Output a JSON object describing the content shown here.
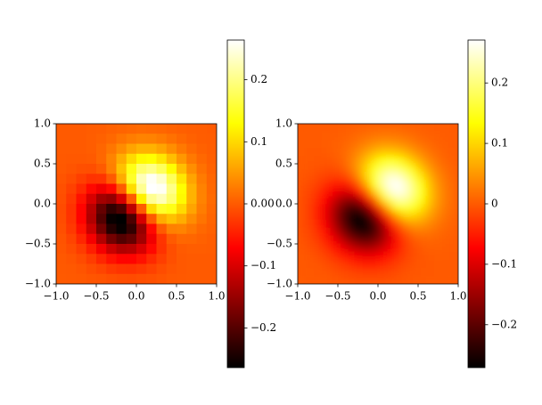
{
  "chart_data": [
    {
      "type": "heatmap",
      "colormap": "hot",
      "interpolation": "nearest",
      "clim": [
        -0.264,
        0.264
      ],
      "xlim": [
        -1,
        1
      ],
      "ylim": [
        -1,
        1
      ],
      "xticks": [
        {
          "value": -1,
          "label": "−1.0"
        },
        {
          "value": -0.5,
          "label": "−0.5"
        },
        {
          "value": 0,
          "label": "0.0"
        },
        {
          "value": 0.5,
          "label": "0.5"
        },
        {
          "value": 1,
          "label": "1.0"
        }
      ],
      "yticks": [
        {
          "value": -1,
          "label": "−1.0"
        },
        {
          "value": -0.5,
          "label": "−0.5"
        },
        {
          "value": 0,
          "label": "0.0"
        },
        {
          "value": 0.5,
          "label": "0.5"
        },
        {
          "value": 1,
          "label": "1.0"
        }
      ],
      "colorbar_ticks": [
        {
          "value": -0.2,
          "label": "−0.2"
        },
        {
          "value": -0.1,
          "label": "−0.1"
        },
        {
          "value": 0,
          "label": "0.00"
        },
        0.1,
        0.2
      ],
      "z": [
        [
          0,
          0,
          0,
          0.001,
          0.002,
          0.005,
          0.008,
          0.01,
          0.012,
          0.011,
          0.009,
          0.006,
          0.004,
          0.002,
          0.001,
          0
        ],
        [
          0,
          0,
          0,
          0.002,
          0.005,
          0.011,
          0.02,
          0.027,
          0.032,
          0.031,
          0.026,
          0.018,
          0.011,
          0.005,
          0.002,
          0.001
        ],
        [
          0,
          0,
          0,
          0.002,
          0.009,
          0.022,
          0.039,
          0.058,
          0.069,
          0.069,
          0.058,
          0.041,
          0.024,
          0.012,
          0.005,
          0.002
        ],
        [
          -0.001,
          -0.002,
          -0.002,
          0,
          0.01,
          0.032,
          0.065,
          0.101,
          0.126,
          0.13,
          0.111,
          0.079,
          0.048,
          0.024,
          0.011,
          0.004
        ],
        [
          -0.002,
          -0.005,
          -0.009,
          -0.01,
          0,
          0.03,
          0.081,
          0.141,
          0.188,
          0.201,
          0.177,
          0.129,
          0.079,
          0.041,
          0.018,
          0.006
        ],
        [
          -0.005,
          -0.011,
          -0.022,
          -0.032,
          -0.03,
          0,
          0.064,
          0.151,
          0.226,
          0.258,
          0.236,
          0.177,
          0.111,
          0.058,
          0.026,
          0.009
        ],
        [
          -0.008,
          -0.02,
          -0.039,
          -0.065,
          -0.081,
          -0.064,
          0,
          0.103,
          0.206,
          0.264,
          0.258,
          0.201,
          0.13,
          0.069,
          0.031,
          0.011
        ],
        [
          -0.01,
          -0.027,
          -0.058,
          -0.101,
          -0.141,
          -0.151,
          -0.103,
          0,
          0.12,
          0.206,
          0.226,
          0.188,
          0.126,
          0.069,
          0.032,
          0.012
        ],
        [
          -0.012,
          -0.032,
          -0.069,
          -0.126,
          -0.188,
          -0.226,
          -0.206,
          -0.12,
          0,
          0.103,
          0.151,
          0.141,
          0.101,
          0.058,
          0.027,
          0.01
        ],
        [
          -0.011,
          -0.031,
          -0.069,
          -0.13,
          -0.201,
          -0.258,
          -0.264,
          -0.206,
          -0.103,
          0,
          0.064,
          0.081,
          0.065,
          0.039,
          0.02,
          0.008
        ],
        [
          -0.009,
          -0.026,
          -0.058,
          -0.111,
          -0.177,
          -0.236,
          -0.258,
          -0.226,
          -0.151,
          -0.064,
          0,
          0.03,
          0.032,
          0.022,
          0.011,
          0.005
        ],
        [
          -0.006,
          -0.018,
          -0.041,
          -0.079,
          -0.129,
          -0.177,
          -0.201,
          -0.188,
          -0.141,
          -0.081,
          -0.03,
          0,
          0.01,
          0.009,
          0.005,
          0.002
        ],
        [
          -0.004,
          -0.011,
          -0.024,
          -0.048,
          -0.079,
          -0.111,
          -0.13,
          -0.126,
          -0.101,
          -0.065,
          -0.032,
          -0.01,
          0,
          0.002,
          0.002,
          0.001
        ],
        [
          -0.002,
          -0.005,
          -0.012,
          -0.024,
          -0.041,
          -0.058,
          -0.069,
          -0.069,
          -0.058,
          -0.039,
          -0.022,
          -0.009,
          -0.002,
          0,
          0,
          0
        ],
        [
          -0.001,
          -0.002,
          -0.005,
          -0.011,
          -0.018,
          -0.026,
          -0.031,
          -0.032,
          -0.027,
          -0.02,
          -0.011,
          -0.005,
          -0.002,
          0,
          0,
          0
        ],
        [
          0,
          -0.001,
          -0.002,
          -0.004,
          -0.006,
          -0.009,
          -0.011,
          -0.012,
          -0.01,
          -0.008,
          -0.005,
          -0.002,
          -0.001,
          0,
          0,
          0
        ]
      ]
    },
    {
      "type": "heatmap",
      "colormap": "hot",
      "interpolation": "bilinear",
      "clim": [
        -0.271,
        0.271
      ],
      "xlim": [
        -1,
        1
      ],
      "ylim": [
        -1,
        1
      ],
      "xticks": [
        {
          "value": -1,
          "label": "−1.0"
        },
        {
          "value": -0.5,
          "label": "−0.5"
        },
        {
          "value": 0,
          "label": "0.0"
        },
        {
          "value": 0.5,
          "label": "0.5"
        },
        {
          "value": 1,
          "label": "1.0"
        }
      ],
      "yticks": [
        {
          "value": -1,
          "label": "−1.0"
        },
        {
          "value": -0.5,
          "label": "−0.5"
        },
        {
          "value": 0,
          "label": "0.0"
        },
        {
          "value": 0.5,
          "label": "0.5"
        },
        {
          "value": 1,
          "label": "1.0"
        }
      ],
      "colorbar_ticks": [
        {
          "value": -0.2,
          "label": "−0.2"
        },
        {
          "value": -0.1,
          "label": "−0.1"
        },
        0,
        0.1,
        0.2
      ],
      "z": [
        [
          0,
          0,
          0,
          0,
          0.001,
          0.002,
          0.004,
          0.006,
          0.008,
          0.01,
          0.011,
          0.011,
          0.01,
          0.008,
          0.006,
          0.004,
          0.002,
          0.001,
          0.001,
          0
        ],
        [
          0,
          0,
          0,
          0.001,
          0.002,
          0.004,
          0.007,
          0.012,
          0.017,
          0.021,
          0.024,
          0.024,
          0.022,
          0.018,
          0.013,
          0.008,
          0.005,
          0.003,
          0.001,
          0.001
        ],
        [
          0,
          0,
          0,
          0.001,
          0.003,
          0.007,
          0.013,
          0.022,
          0.032,
          0.042,
          0.048,
          0.048,
          0.044,
          0.036,
          0.026,
          0.017,
          0.01,
          0.005,
          0.003,
          0.001
        ],
        [
          0,
          -0.001,
          -0.001,
          0,
          0.003,
          0.009,
          0.02,
          0.035,
          0.054,
          0.072,
          0.084,
          0.086,
          0.08,
          0.066,
          0.048,
          0.032,
          0.019,
          0.01,
          0.005,
          0.002
        ],
        [
          -0.001,
          -0.002,
          -0.003,
          -0.003,
          0,
          0.008,
          0.024,
          0.048,
          0.079,
          0.109,
          0.131,
          0.138,
          0.129,
          0.108,
          0.08,
          0.053,
          0.032,
          0.017,
          0.008,
          0.004
        ],
        [
          -0.002,
          -0.004,
          -0.007,
          -0.009,
          -0.008,
          0,
          0.02,
          0.053,
          0.097,
          0.144,
          0.179,
          0.195,
          0.186,
          0.158,
          0.119,
          0.08,
          0.048,
          0.026,
          0.013,
          0.006
        ],
        [
          -0.004,
          -0.007,
          -0.013,
          -0.02,
          -0.024,
          -0.02,
          0,
          0.04,
          0.097,
          0.161,
          0.214,
          0.242,
          0.238,
          0.206,
          0.158,
          0.108,
          0.066,
          0.036,
          0.018,
          0.008
        ],
        [
          -0.006,
          -0.012,
          -0.022,
          -0.035,
          -0.048,
          -0.053,
          -0.04,
          0,
          0.065,
          0.145,
          0.217,
          0.261,
          0.268,
          0.238,
          0.186,
          0.129,
          0.08,
          0.044,
          0.022,
          0.01
        ],
        [
          -0.008,
          -0.017,
          -0.032,
          -0.054,
          -0.079,
          -0.097,
          -0.097,
          -0.065,
          0,
          0.088,
          0.176,
          0.239,
          0.261,
          0.242,
          0.195,
          0.138,
          0.086,
          0.048,
          0.024,
          0.011
        ],
        [
          -0.01,
          -0.021,
          -0.042,
          -0.072,
          -0.109,
          -0.144,
          -0.161,
          -0.145,
          -0.088,
          0,
          0.098,
          0.176,
          0.217,
          0.214,
          0.179,
          0.131,
          0.084,
          0.048,
          0.024,
          0.011
        ],
        [
          -0.011,
          -0.024,
          -0.048,
          -0.084,
          -0.131,
          -0.179,
          -0.214,
          -0.217,
          -0.176,
          -0.098,
          0,
          0.088,
          0.145,
          0.161,
          0.144,
          0.109,
          0.072,
          0.042,
          0.021,
          0.01
        ],
        [
          -0.011,
          -0.024,
          -0.048,
          -0.086,
          -0.138,
          -0.195,
          -0.242,
          -0.261,
          -0.239,
          -0.176,
          -0.088,
          0,
          0.065,
          0.097,
          0.097,
          0.079,
          0.054,
          0.032,
          0.017,
          0.008
        ],
        [
          -0.01,
          -0.022,
          -0.044,
          -0.08,
          -0.129,
          -0.186,
          -0.238,
          -0.268,
          -0.261,
          -0.217,
          -0.145,
          -0.065,
          0,
          0.04,
          0.053,
          0.048,
          0.035,
          0.022,
          0.012,
          0.006
        ],
        [
          -0.008,
          -0.018,
          -0.036,
          -0.066,
          -0.108,
          -0.158,
          -0.206,
          -0.238,
          -0.242,
          -0.214,
          -0.161,
          -0.097,
          -0.04,
          0,
          0.02,
          0.024,
          0.02,
          0.013,
          0.007,
          0.004
        ],
        [
          -0.006,
          -0.013,
          -0.026,
          -0.048,
          -0.08,
          -0.119,
          -0.158,
          -0.186,
          -0.195,
          -0.179,
          -0.144,
          -0.097,
          -0.053,
          -0.02,
          0,
          0.008,
          0.009,
          0.007,
          0.004,
          0.002
        ],
        [
          -0.004,
          -0.008,
          -0.017,
          -0.032,
          -0.053,
          -0.08,
          -0.108,
          -0.129,
          -0.138,
          -0.131,
          -0.109,
          -0.079,
          -0.048,
          -0.024,
          -0.008,
          0,
          0.003,
          0.003,
          0.002,
          0.001
        ],
        [
          -0.002,
          -0.005,
          -0.01,
          -0.019,
          -0.032,
          -0.048,
          -0.066,
          -0.08,
          -0.086,
          -0.084,
          -0.072,
          -0.054,
          -0.035,
          -0.02,
          -0.009,
          -0.003,
          0,
          0.001,
          0.001,
          0
        ],
        [
          -0.001,
          -0.003,
          -0.005,
          -0.01,
          -0.017,
          -0.026,
          -0.036,
          -0.044,
          -0.048,
          -0.048,
          -0.042,
          -0.032,
          -0.022,
          -0.013,
          -0.007,
          -0.003,
          -0.001,
          0,
          0,
          0
        ],
        [
          -0.001,
          -0.001,
          -0.003,
          -0.005,
          -0.008,
          -0.013,
          -0.018,
          -0.022,
          -0.024,
          -0.024,
          -0.021,
          -0.017,
          -0.012,
          -0.007,
          -0.004,
          -0.002,
          -0.001,
          0,
          0,
          0
        ],
        [
          0,
          -0.001,
          -0.001,
          -0.002,
          -0.004,
          -0.006,
          -0.008,
          -0.01,
          -0.011,
          -0.011,
          -0.01,
          -0.008,
          -0.006,
          -0.004,
          -0.002,
          -0.001,
          0,
          0,
          0,
          0
        ]
      ]
    }
  ]
}
